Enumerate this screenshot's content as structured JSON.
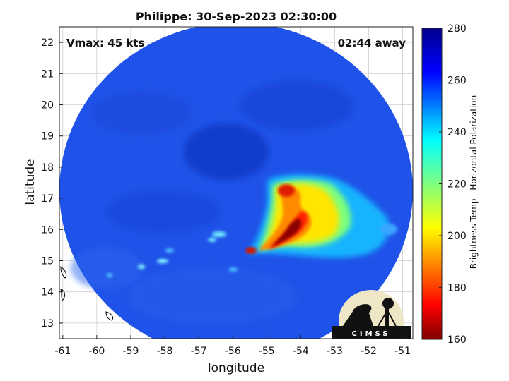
{
  "title": "Philippe: 30-Sep-2023 02:30:00",
  "vmax_label": "Vmax: 45 kts",
  "time_label": "02:44 away",
  "logo_text": "CIMSS",
  "chart_data": {
    "type": "heatmap",
    "xlabel": "longitude",
    "ylabel": "latitude",
    "colorbar_label": "Brightness Temp - Horizontal Polarization",
    "xlim": [
      -61.1,
      -50.7
    ],
    "ylim": [
      12.5,
      22.5
    ],
    "xticks": [
      -61,
      -60,
      -59,
      -58,
      -57,
      -56,
      -55,
      -54,
      -53,
      -52,
      -51
    ],
    "yticks": [
      13,
      14,
      15,
      16,
      17,
      18,
      19,
      20,
      21,
      22
    ],
    "colorbar_range": [
      160,
      280
    ],
    "colorbar_ticks": [
      160,
      180,
      200,
      220,
      240,
      260,
      280
    ],
    "grid": true,
    "colormap": "jet",
    "swath_center": [
      -56.0,
      17.5
    ],
    "background_temp": 262,
    "cold_region": {
      "lon": [
        -55.5,
        -51.5
      ],
      "lat": [
        15.0,
        17.6
      ],
      "min_temp": 165
    }
  }
}
